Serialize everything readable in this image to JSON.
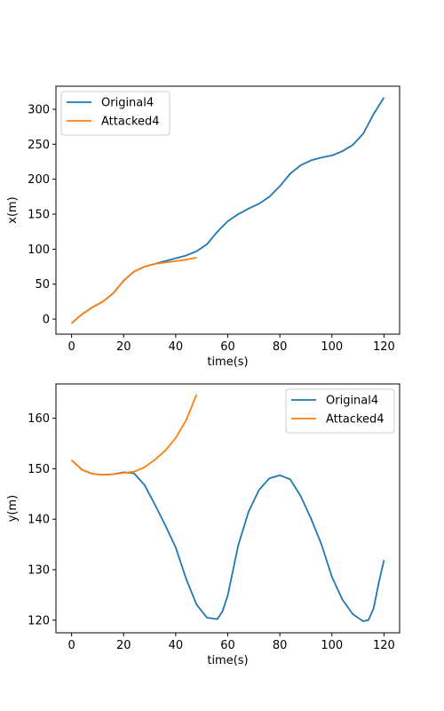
{
  "chart_data": [
    {
      "type": "line",
      "xlabel": "time(s)",
      "ylabel": "x(m)",
      "xlim": [
        -6,
        126
      ],
      "ylim": [
        -21.5,
        333
      ],
      "xticks": [
        0,
        20,
        40,
        60,
        80,
        100,
        120
      ],
      "yticks": [
        0,
        50,
        100,
        150,
        200,
        250,
        300
      ],
      "grid": false,
      "legend_position": "upper left",
      "series": [
        {
          "name": "Original4",
          "color": "#1f77b4",
          "x": [
            0,
            4,
            8,
            12,
            16,
            20,
            24,
            28,
            32,
            36,
            40,
            44,
            48,
            52,
            56,
            60,
            64,
            68,
            72,
            76,
            80,
            84,
            88,
            92,
            96,
            100,
            104,
            108,
            112,
            116,
            120
          ],
          "y": [
            -6,
            7,
            17,
            25,
            37,
            55,
            68,
            75,
            79,
            83,
            87,
            91,
            97,
            107,
            125,
            140,
            150,
            158,
            165,
            175,
            190,
            208,
            220,
            227,
            231,
            234,
            240,
            249,
            265,
            293,
            317
          ]
        },
        {
          "name": "Attacked4",
          "color": "#ff7f0e",
          "x": [
            0,
            4,
            8,
            12,
            16,
            20,
            24,
            28,
            32,
            36,
            40,
            44,
            48
          ],
          "y": [
            -6,
            7,
            17,
            25,
            37,
            55,
            68,
            75,
            79,
            81,
            83,
            85,
            88
          ]
        }
      ]
    },
    {
      "type": "line",
      "xlabel": "time(s)",
      "ylabel": "y(m)",
      "xlim": [
        -6,
        126
      ],
      "ylim": [
        117.5,
        166.8
      ],
      "xticks": [
        0,
        20,
        40,
        60,
        80,
        100,
        120
      ],
      "yticks": [
        120,
        130,
        140,
        150,
        160
      ],
      "grid": false,
      "legend_position": "upper right",
      "series": [
        {
          "name": "Original4",
          "color": "#1f77b4",
          "x": [
            0,
            4,
            8,
            12,
            16,
            20,
            24,
            28,
            32,
            36,
            40,
            44,
            48,
            52,
            56,
            58,
            60,
            64,
            68,
            72,
            76,
            80,
            84,
            88,
            92,
            96,
            100,
            104,
            108,
            112,
            114,
            116,
            118,
            120
          ],
          "y": [
            151.7,
            149.8,
            149.0,
            148.8,
            148.9,
            149.3,
            149.1,
            146.8,
            142.9,
            138.8,
            134.4,
            128.2,
            123.1,
            120.5,
            120.2,
            121.8,
            124.9,
            134.8,
            141.5,
            145.8,
            148.1,
            148.7,
            147.9,
            144.6,
            140.1,
            135.0,
            128.6,
            124.1,
            121.2,
            119.8,
            120.0,
            122.3,
            127.4,
            131.9
          ]
        },
        {
          "name": "Attacked4",
          "color": "#ff7f0e",
          "x": [
            0,
            4,
            8,
            12,
            16,
            20,
            24,
            28,
            32,
            36,
            40,
            44,
            48
          ],
          "y": [
            151.7,
            149.8,
            149.0,
            148.8,
            148.9,
            149.2,
            149.4,
            150.3,
            151.8,
            153.6,
            156.1,
            159.6,
            164.7
          ]
        }
      ]
    }
  ]
}
